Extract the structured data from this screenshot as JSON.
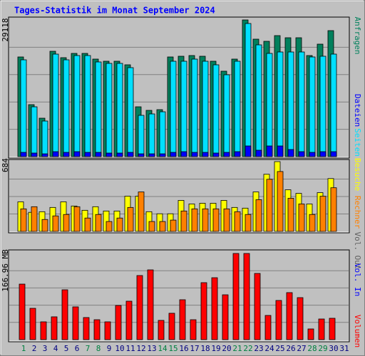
{
  "chart_data": [
    {
      "type": "bar",
      "title": "Tages-Statistik im Monat September 2024",
      "ylim": [
        0,
        29118
      ],
      "yticks": [
        29118
      ],
      "grid": true,
      "series": [
        {
          "name": "Anfragen",
          "color": "#00805c",
          "values": [
            21232,
            11071,
            8189,
            22445,
            21080,
            21990,
            21990,
            20777,
            20322,
            20322,
            19563,
            10616,
            9858,
            10009,
            21232,
            21384,
            21535,
            21384,
            20322,
            18199,
            20777,
            29118,
            25023,
            24568,
            25781,
            25326,
            25326,
            21535,
            23961,
            26843,
            null
          ]
        },
        {
          "name": "Dateien",
          "color": "#0000ff",
          "values": [
            910,
            760,
            600,
            1060,
            910,
            1060,
            910,
            910,
            760,
            760,
            910,
            600,
            600,
            600,
            910,
            1060,
            910,
            910,
            760,
            910,
            1060,
            2275,
            1365,
            2275,
            2275,
            1517,
            1060,
            910,
            1060,
            1060,
            null
          ]
        },
        {
          "name": "Seiten",
          "color": "#00e0ff",
          "values": [
            20625,
            10616,
            7583,
            21838,
            20625,
            21535,
            21535,
            20170,
            19867,
            19867,
            18957,
            8796,
            9099,
            9554,
            20322,
            20322,
            20777,
            20322,
            19563,
            17440,
            20322,
            28360,
            23810,
            21990,
            22293,
            22293,
            22293,
            21232,
            21384,
            21838,
            null
          ]
        }
      ]
    },
    {
      "type": "bar",
      "ylim": [
        0,
        684
      ],
      "yticks": [
        684
      ],
      "grid": true,
      "series": [
        {
          "name": "Besuche",
          "color": "#ffff00",
          "values": [
            290,
            187,
            193,
            235,
            290,
            249,
            207,
            242,
            200,
            200,
            345,
            345,
            193,
            173,
            173,
            304,
            269,
            276,
            276,
            304,
            235,
            228,
            387,
            560,
            684,
            408,
            373,
            269,
            380,
            518,
            null
          ]
        },
        {
          "name": "Rechner",
          "color": "#ff8000",
          "values": [
            221,
            242,
            117,
            152,
            166,
            242,
            131,
            166,
            97,
            131,
            235,
            387,
            97,
            97,
            111,
            200,
            221,
            221,
            221,
            221,
            193,
            166,
            311,
            511,
            587,
            325,
            269,
            166,
            345,
            428,
            null
          ]
        }
      ]
    },
    {
      "type": "bar",
      "ylim": [
        0,
        166.96
      ],
      "yticks": [
        {
          "value": 166.96,
          "label": "166.96 MB"
        }
      ],
      "grid": true,
      "categories": [
        "1",
        "2",
        "3",
        "4",
        "5",
        "6",
        "7",
        "8",
        "9",
        "10",
        "11",
        "12",
        "13",
        "14",
        "15",
        "16",
        "17",
        "18",
        "19",
        "20",
        "21",
        "22",
        "23",
        "24",
        "25",
        "26",
        "27",
        "28",
        "29",
        "30",
        "31"
      ],
      "category_colors": [
        "#008040",
        "#000080",
        "#000080",
        "#000080",
        "#000080",
        "#000080",
        "#008040",
        "#008040",
        "#000080",
        "#000080",
        "#000080",
        "#000080",
        "#000080",
        "#008040",
        "#008040",
        "#000080",
        "#000080",
        "#000080",
        "#000080",
        "#000080",
        "#008040",
        "#008040",
        "#000080",
        "#000080",
        "#000080",
        "#000080",
        "#000080",
        "#008040",
        "#008040",
        "#000080",
        "#000080"
      ],
      "series": [
        {
          "name": "Volumen",
          "color": "#ff0000",
          "values": [
            107.6,
            60.7,
            34.5,
            44.2,
            96.6,
            63.5,
            42.8,
            38.6,
            34.5,
            66.2,
            74.5,
            124.2,
            135.2,
            37.3,
            51.1,
            77.3,
            38.6,
            110.4,
            120.0,
            86.9,
            166.96,
            166.96,
            128.3,
            46.9,
            75.9,
            91.1,
            81.4,
            20.7,
            40.0,
            41.4,
            null
          ]
        }
      ],
      "extra_legend": [
        {
          "name": "Vol. In",
          "color": "#0000ff"
        },
        {
          "name": "Vol. Out",
          "color": "#606060"
        }
      ]
    }
  ]
}
